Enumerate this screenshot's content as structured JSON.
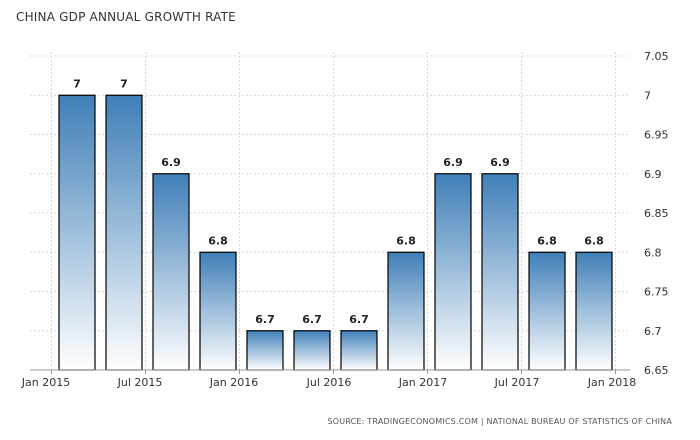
{
  "chart_data": {
    "type": "bar",
    "title": "CHINA GDP ANNUAL GROWTH RATE",
    "source": "SOURCE: TRADINGECONOMICS.COM | NATIONAL BUREAU OF STATISTICS OF CHINA",
    "categories": [
      "Q1 2015",
      "Q2 2015",
      "Q3 2015",
      "Q4 2015",
      "Q1 2016",
      "Q2 2016",
      "Q3 2016",
      "Q4 2016",
      "Q1 2017",
      "Q2 2017",
      "Q3 2017",
      "Q4 2017"
    ],
    "values": [
      7,
      7,
      6.9,
      6.8,
      6.7,
      6.7,
      6.7,
      6.8,
      6.9,
      6.9,
      6.8,
      6.8
    ],
    "data_labels": [
      "7",
      "7",
      "6.9",
      "6.8",
      "6.7",
      "6.7",
      "6.7",
      "6.8",
      "6.9",
      "6.9",
      "6.8",
      "6.8"
    ],
    "ylim": [
      6.65,
      7.05
    ],
    "yticks": [
      "7.05",
      "7",
      "6.95",
      "6.9",
      "6.85",
      "6.8",
      "6.75",
      "6.7",
      "6.65"
    ],
    "xticks": [
      "Jan 2015",
      "Jul 2015",
      "Jan 2016",
      "Jul 2016",
      "Jan 2017",
      "Jul 2017",
      "Jan 2018"
    ],
    "y_axis_side": "right",
    "grid": true,
    "colors": {
      "bar_top": "#3f7fb8",
      "bar_bottom": "#ffffff",
      "bar_stroke": "#000000",
      "grid": "#d8d8d8"
    }
  }
}
